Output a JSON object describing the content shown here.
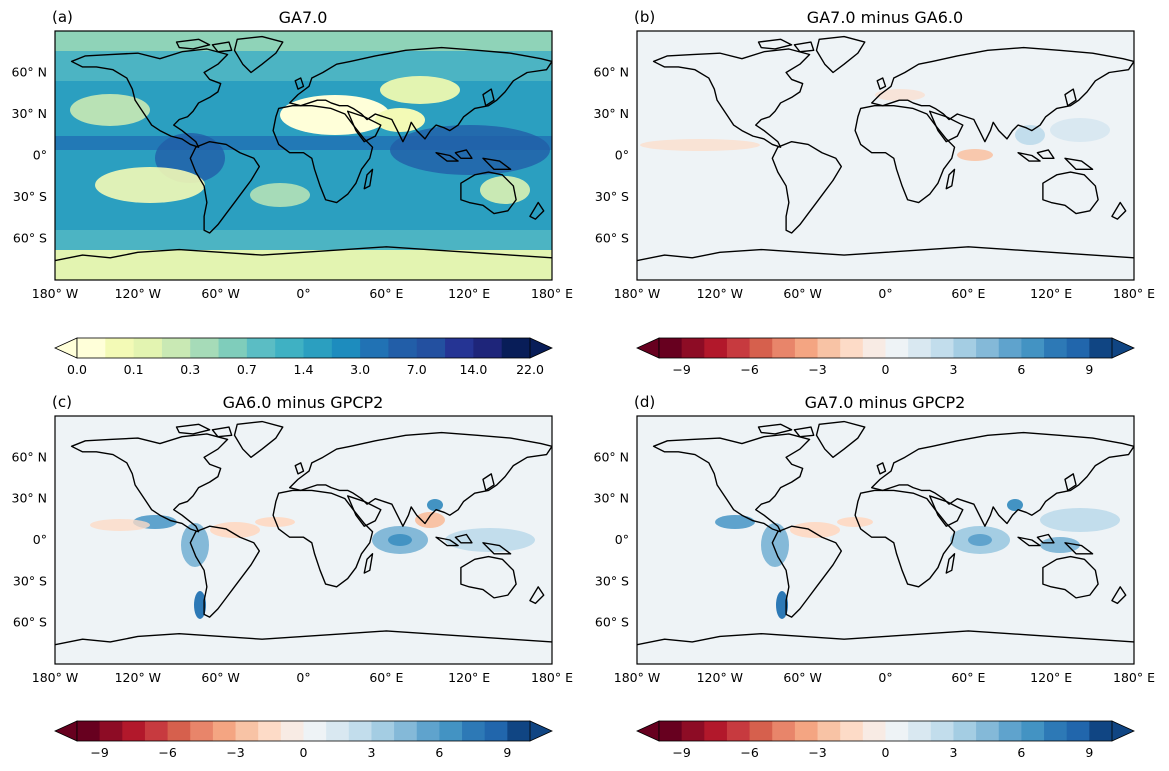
{
  "chart_data": [
    {
      "type": "heatmap",
      "panel_label": "(a)",
      "title": "GA7.0",
      "xlabel": "",
      "ylabel": "",
      "x_ticks": [
        "180° W",
        "120° W",
        "60° W",
        "0°",
        "60° E",
        "120° E",
        "180° E"
      ],
      "y_ticks": [
        "60° N",
        "30° N",
        "0°",
        "30° S",
        "60° S"
      ],
      "colorbar": {
        "colors": [
          "#ffffd9",
          "#f3fab6",
          "#e3f4b1",
          "#c9e9b4",
          "#a6dbb8",
          "#7fcdbb",
          "#5bbdc4",
          "#3fb1c3",
          "#2b9fc0",
          "#1d8cbe",
          "#2172b4",
          "#225ea8",
          "#2350a0",
          "#253494",
          "#1e257a",
          "#081d58"
        ],
        "labels": [
          "0.0",
          "0.1",
          "0.3",
          "0.7",
          "1.4",
          "3.0",
          "7.0",
          "14.0",
          "22.0"
        ],
        "extend": "both"
      },
      "description_values": "mean precipitation field; wet ITCZ/warm pool bands, dry subtropical deserts"
    },
    {
      "type": "heatmap",
      "panel_label": "(b)",
      "title": "GA7.0 minus GA6.0",
      "xlabel": "",
      "ylabel": "",
      "x_ticks": [
        "180° W",
        "120° W",
        "60° W",
        "0°",
        "60° E",
        "120° E",
        "180° E"
      ],
      "y_ticks": [
        "60° N",
        "30° N",
        "0°",
        "30° S",
        "60° S"
      ],
      "colorbar": {
        "colors": [
          "#67001f",
          "#8d0c25",
          "#b2182b",
          "#c73a3f",
          "#d6604d",
          "#e8856a",
          "#f4a582",
          "#f8c3a5",
          "#fddbc7",
          "#f8ebe4",
          "#eef3f6",
          "#d9e8f1",
          "#c2ddec",
          "#a4cde3",
          "#84b9d8",
          "#5fa3cd",
          "#4393c3",
          "#2d79b6",
          "#2166ac",
          "#104583"
        ],
        "labels": [
          "−9",
          "−6",
          "−3",
          "0",
          "3",
          "6",
          "9"
        ],
        "extend": "both"
      }
    },
    {
      "type": "heatmap",
      "panel_label": "(c)",
      "title": "GA6.0 minus GPCP2",
      "xlabel": "",
      "ylabel": "",
      "x_ticks": [
        "180° W",
        "120° W",
        "60° W",
        "0°",
        "60° E",
        "120° E",
        "180° E"
      ],
      "y_ticks": [
        "60° N",
        "30° N",
        "0°",
        "30° S",
        "60° S"
      ],
      "colorbar": {
        "colors": [
          "#67001f",
          "#8d0c25",
          "#b2182b",
          "#c73a3f",
          "#d6604d",
          "#e8856a",
          "#f4a582",
          "#f8c3a5",
          "#fddbc7",
          "#f8ebe4",
          "#eef3f6",
          "#d9e8f1",
          "#c2ddec",
          "#a4cde3",
          "#84b9d8",
          "#5fa3cd",
          "#4393c3",
          "#2d79b6",
          "#2166ac",
          "#104583"
        ],
        "labels": [
          "−9",
          "−6",
          "−3",
          "0",
          "3",
          "6",
          "9"
        ],
        "extend": "both"
      }
    },
    {
      "type": "heatmap",
      "panel_label": "(d)",
      "title": "GA7.0 minus GPCP2",
      "xlabel": "",
      "ylabel": "",
      "x_ticks": [
        "180° W",
        "120° W",
        "60° W",
        "0°",
        "60° E",
        "120° E",
        "180° E"
      ],
      "y_ticks": [
        "60° N",
        "30° N",
        "0°",
        "30° S",
        "60° S"
      ],
      "colorbar": {
        "colors": [
          "#67001f",
          "#8d0c25",
          "#b2182b",
          "#c73a3f",
          "#d6604d",
          "#e8856a",
          "#f4a582",
          "#f8c3a5",
          "#fddbc7",
          "#f8ebe4",
          "#eef3f6",
          "#d9e8f1",
          "#c2ddec",
          "#a4cde3",
          "#84b9d8",
          "#5fa3cd",
          "#4393c3",
          "#2d79b6",
          "#2166ac",
          "#104583"
        ],
        "labels": [
          "−9",
          "−6",
          "−3",
          "0",
          "3",
          "6",
          "9"
        ],
        "extend": "both"
      }
    }
  ]
}
